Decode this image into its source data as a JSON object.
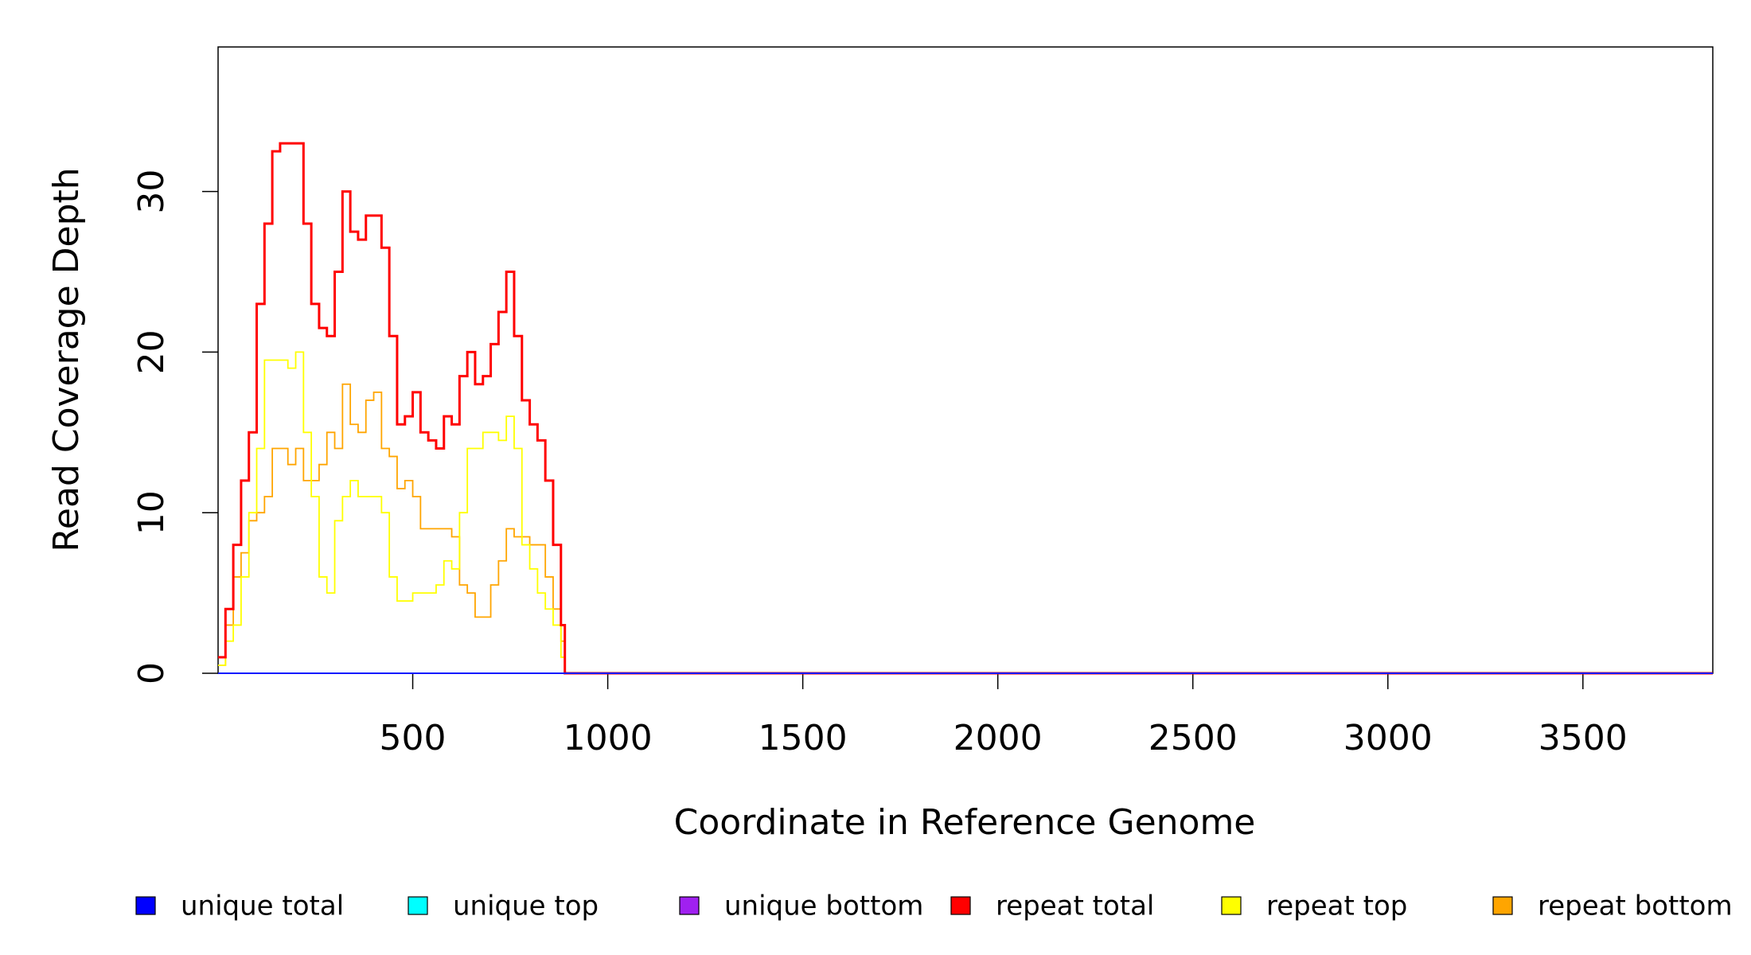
{
  "chart_data": {
    "type": "line",
    "step": "post",
    "x_label": "Coordinate in Reference Genome",
    "y_label": "Read Coverage Depth",
    "xlim": [
      1,
      3833
    ],
    "ylim": [
      0,
      39
    ],
    "xticks": [
      500,
      1000,
      1500,
      2000,
      2500,
      3000,
      3500
    ],
    "yticks": [
      0,
      10,
      20,
      30
    ],
    "x": [
      1,
      20,
      40,
      60,
      80,
      100,
      120,
      140,
      160,
      180,
      200,
      220,
      240,
      260,
      280,
      300,
      320,
      340,
      360,
      380,
      400,
      420,
      440,
      460,
      480,
      500,
      520,
      540,
      560,
      580,
      600,
      620,
      640,
      660,
      680,
      700,
      720,
      740,
      760,
      780,
      800,
      820,
      840,
      860,
      880,
      890,
      3833
    ],
    "series": [
      {
        "name": "unique total",
        "color": "#0000ff",
        "values": [
          0,
          0,
          0,
          0,
          0,
          0,
          0,
          0,
          0,
          0,
          0,
          0,
          0,
          0,
          0,
          0,
          0,
          0,
          0,
          0,
          0,
          0,
          0,
          0,
          0,
          0,
          0,
          0,
          0,
          0,
          0,
          0,
          0,
          0,
          0,
          0,
          0,
          0,
          0,
          0,
          0,
          0,
          0,
          0,
          0,
          0,
          0
        ]
      },
      {
        "name": "unique top",
        "color": "#00ffff",
        "values": [
          0,
          0,
          0,
          0,
          0,
          0,
          0,
          0,
          0,
          0,
          0,
          0,
          0,
          0,
          0,
          0,
          0,
          0,
          0,
          0,
          0,
          0,
          0,
          0,
          0,
          0,
          0,
          0,
          0,
          0,
          0,
          0,
          0,
          0,
          0,
          0,
          0,
          0,
          0,
          0,
          0,
          0,
          0,
          0,
          0,
          0,
          0
        ]
      },
      {
        "name": "unique bottom",
        "color": "#a020f0",
        "values": [
          0,
          0,
          0,
          0,
          0,
          0,
          0,
          0,
          0,
          0,
          0,
          0,
          0,
          0,
          0,
          0,
          0,
          0,
          0,
          0,
          0,
          0,
          0,
          0,
          0,
          0,
          0,
          0,
          0,
          0,
          0,
          0,
          0,
          0,
          0,
          0,
          0,
          0,
          0,
          0,
          0,
          0,
          0,
          0,
          0,
          0,
          0
        ]
      },
      {
        "name": "repeat total",
        "color": "#ff0000",
        "values": [
          1,
          4,
          8,
          12,
          15,
          23,
          28,
          32.5,
          33,
          33,
          33,
          28,
          23,
          21.5,
          21,
          25,
          30,
          27.5,
          27,
          28.5,
          28.5,
          26.5,
          21,
          15.5,
          16,
          17.5,
          15,
          14.5,
          14,
          16,
          15.5,
          18.5,
          20,
          18,
          18.5,
          20.5,
          22.5,
          25,
          21,
          17,
          15.5,
          14.5,
          12,
          8,
          3,
          0,
          0
        ]
      },
      {
        "name": "repeat top",
        "color": "#ffff00",
        "values": [
          0.5,
          2,
          3,
          6,
          10,
          14,
          19.5,
          19.5,
          19.5,
          19,
          20,
          15,
          11,
          6,
          5,
          9.5,
          11,
          12,
          11,
          11,
          11,
          10,
          6,
          4.5,
          4.5,
          5,
          5,
          5,
          5.5,
          7,
          6.5,
          10,
          14,
          14,
          15,
          15,
          14.5,
          16,
          14,
          8,
          6.5,
          5,
          4,
          3,
          1,
          0,
          0
        ]
      },
      {
        "name": "repeat bottom",
        "color": "#ffa500",
        "values": [
          0.5,
          3,
          6,
          7.5,
          9.5,
          10,
          11,
          14,
          14,
          13,
          14,
          12,
          12,
          13,
          15,
          14,
          18,
          15.5,
          15,
          17,
          17.5,
          14,
          13.5,
          11.5,
          12,
          11,
          9,
          9,
          9,
          9,
          8.5,
          5.5,
          5,
          3.5,
          3.5,
          5.5,
          7,
          9,
          8.5,
          8.5,
          8,
          8,
          6,
          4,
          2,
          0,
          0
        ]
      }
    ]
  }
}
